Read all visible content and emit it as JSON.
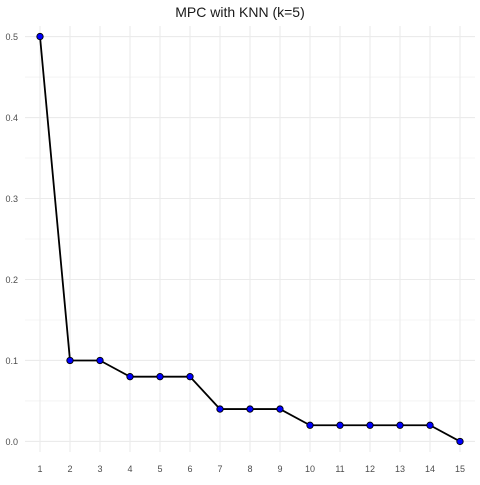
{
  "chart_data": {
    "type": "line",
    "title": "MPC with KNN (k=5)",
    "xlabel": "",
    "ylabel": "",
    "x": [
      1,
      2,
      3,
      4,
      5,
      6,
      7,
      8,
      9,
      10,
      11,
      12,
      13,
      14,
      15
    ],
    "series": [
      {
        "values": [
          0.5,
          0.1,
          0.1,
          0.08,
          0.08,
          0.08,
          0.04,
          0.04,
          0.04,
          0.02,
          0.02,
          0.02,
          0.02,
          0.02,
          0.0
        ]
      }
    ],
    "xticks": [
      "1",
      "2",
      "3",
      "4",
      "5",
      "6",
      "7",
      "8",
      "9",
      "10",
      "11",
      "12",
      "13",
      "14",
      "15"
    ],
    "yticks": [
      "0.0",
      "0.1",
      "0.2",
      "0.3",
      "0.4",
      "0.5"
    ],
    "xlim": [
      0.5,
      15.5
    ],
    "ylim": [
      -0.013,
      0.513
    ],
    "grid": true,
    "line_color": "#000000",
    "point_fill": "#0000ff",
    "point_stroke": "#000000",
    "grid_color": "#ebebeb"
  }
}
